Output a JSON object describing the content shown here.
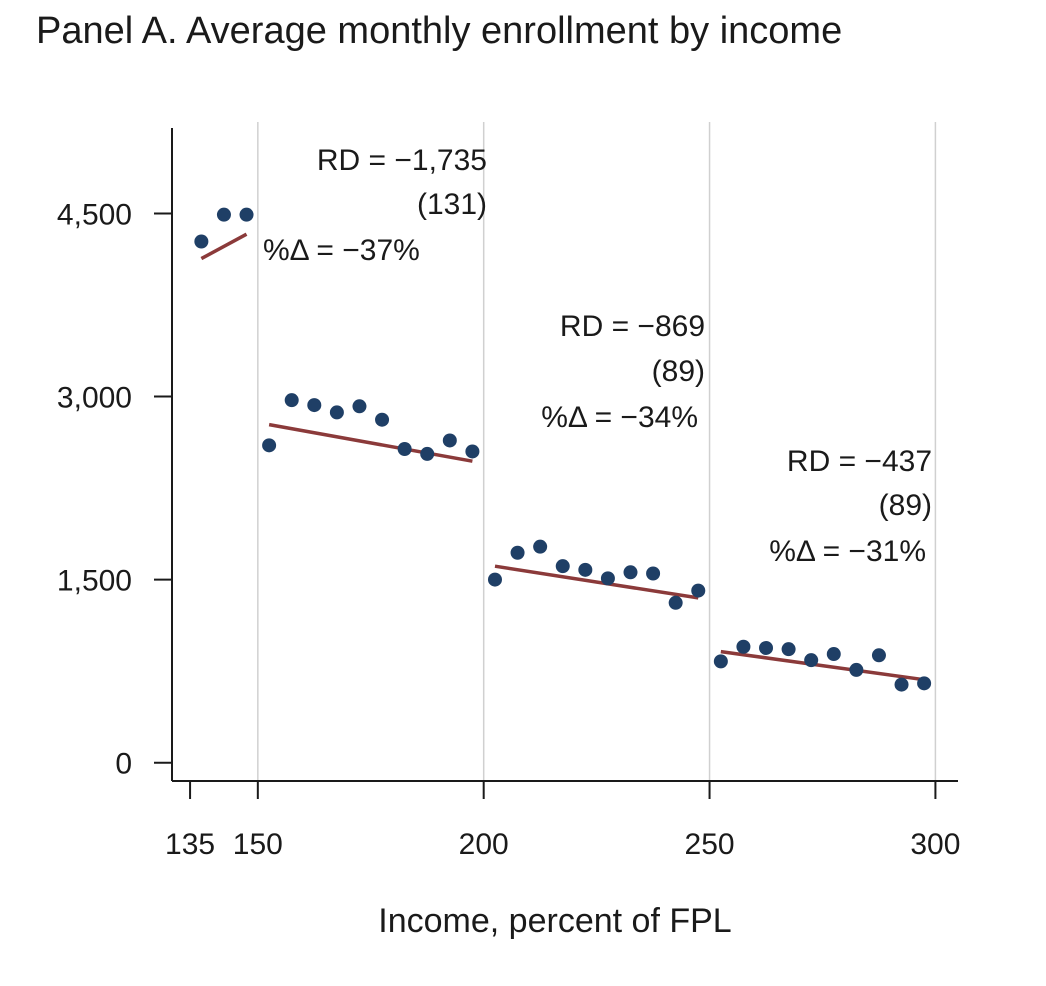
{
  "chart_data": {
    "type": "scatter",
    "title": "Panel A. Average monthly enrollment by income",
    "xlabel": "Income, percent of FPL",
    "ylabel": "",
    "xlim": [
      131,
      305
    ],
    "ylim": [
      -150,
      5200
    ],
    "x_ticks": [
      135,
      150,
      200,
      250,
      300
    ],
    "x_tick_labels": [
      "135",
      "150",
      "200",
      "250",
      "300"
    ],
    "y_ticks": [
      0,
      1500,
      3000,
      4500
    ],
    "y_tick_labels": [
      "0",
      "1,500",
      "3,000",
      "4,500"
    ],
    "vertical_gridlines_at": [
      150,
      200,
      250,
      300
    ],
    "colors": {
      "points": "#1f3f66",
      "fit_line": "#8b3a3a",
      "grid": "#d0d0d0",
      "axis": "#1a1a1a"
    },
    "points": {
      "x": [
        137.5,
        142.5,
        147.5,
        152.5,
        157.5,
        162.5,
        167.5,
        172.5,
        177.5,
        182.5,
        187.5,
        192.5,
        197.5,
        202.5,
        207.5,
        212.5,
        217.5,
        222.5,
        227.5,
        232.5,
        237.5,
        242.5,
        247.5,
        252.5,
        257.5,
        262.5,
        267.5,
        272.5,
        277.5,
        282.5,
        287.5,
        292.5,
        297.5
      ],
      "y": [
        4270,
        4490,
        4490,
        2600,
        2970,
        2930,
        2870,
        2920,
        2810,
        2570,
        2530,
        2640,
        2550,
        1500,
        1720,
        1770,
        1610,
        1580,
        1510,
        1560,
        1550,
        1310,
        1410,
        830,
        950,
        940,
        930,
        840,
        890,
        760,
        880,
        640,
        650
      ]
    },
    "fit_lines": [
      {
        "x": [
          137.5,
          147.5
        ],
        "y": [
          4130,
          4330
        ]
      },
      {
        "x": [
          152.5,
          197.5
        ],
        "y": [
          2770,
          2470
        ]
      },
      {
        "x": [
          202.5,
          247.5
        ],
        "y": [
          1610,
          1350
        ]
      },
      {
        "x": [
          252.5,
          297.5
        ],
        "y": [
          910,
          680
        ]
      }
    ],
    "annotations": [
      {
        "rd": "RD = −1,735",
        "se": "(131)",
        "pct": "%Δ = −37%"
      },
      {
        "rd": "RD = −869",
        "se": "(89)",
        "pct": "%Δ = −34%"
      },
      {
        "rd": "RD = −437",
        "se": "(89)",
        "pct": "%Δ = −31%"
      }
    ]
  }
}
